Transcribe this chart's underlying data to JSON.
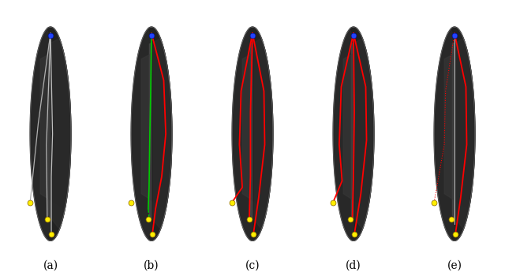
{
  "figure_width": 6.4,
  "figure_height": 3.5,
  "dpi": 100,
  "background_color": "#ffffff",
  "labels": [
    "(a)",
    "(b)",
    "(c)",
    "(d)",
    "(e)"
  ],
  "label_fontsize": 10,
  "num_panels": 5,
  "blue_dot_color": "#2244ff",
  "yellow_dot_color": "#ffee00",
  "red_path_color": "#ff0000",
  "green_path_color": "#00cc00",
  "white_vein_color": "#cccccc"
}
